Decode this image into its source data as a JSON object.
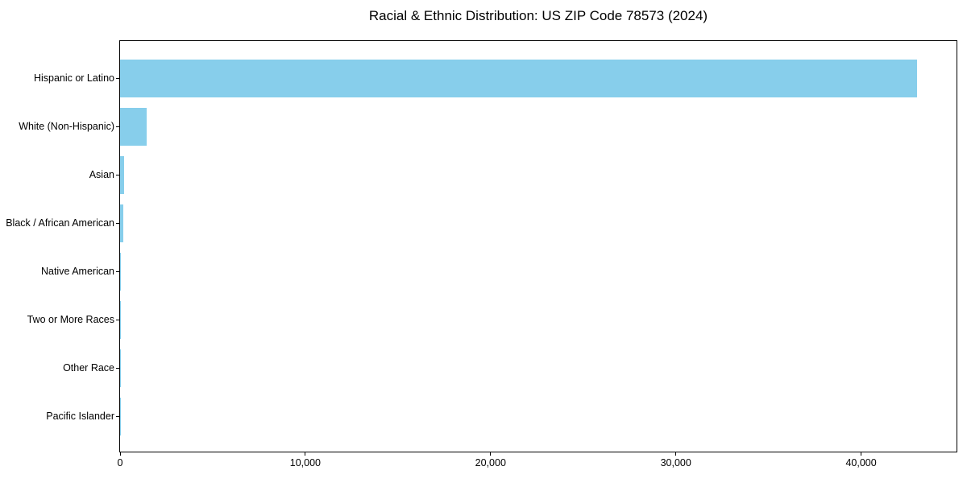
{
  "chart_data": {
    "type": "bar",
    "orientation": "horizontal",
    "title": "Racial & Ethnic Distribution: US ZIP Code 78573 (2024)",
    "categories": [
      "Hispanic or Latino",
      "White (Non-Hispanic)",
      "Asian",
      "Black / African American",
      "Native American",
      "Two or More Races",
      "Other Race",
      "Pacific Islander"
    ],
    "values": [
      43000,
      1450,
      200,
      175,
      50,
      30,
      20,
      5
    ],
    "xlabel": "",
    "ylabel": "",
    "xlim": [
      0,
      45150
    ],
    "x_ticks": [
      0,
      10000,
      20000,
      30000,
      40000
    ],
    "x_tick_labels": [
      "0",
      "10,000",
      "20,000",
      "30,000",
      "40,000"
    ],
    "bar_color": "#87CEEB",
    "background_color": "#FFFFFF",
    "axis_color": "#000000",
    "grid": false,
    "legend": "none"
  }
}
